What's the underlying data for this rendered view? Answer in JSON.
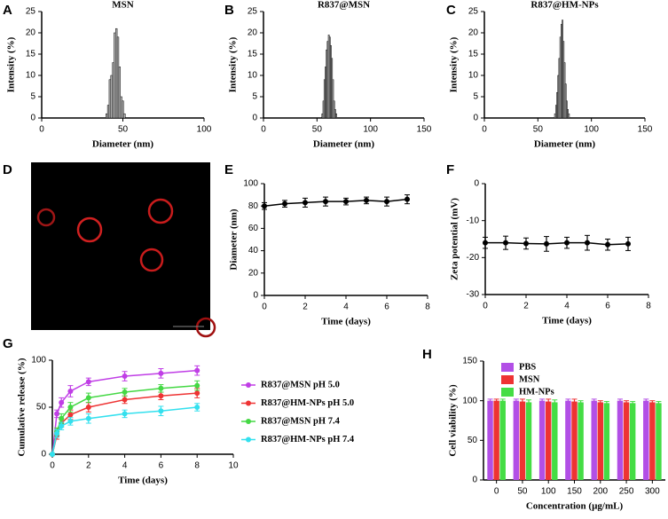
{
  "chart_data": [
    {
      "panel": "A",
      "type": "bar",
      "title": "MSN",
      "x_label": "Diameter (nm)",
      "y_label": "Intensity (%)",
      "color": "#bbbbbb",
      "x": [
        40,
        41,
        42,
        43,
        44,
        45,
        46,
        47,
        48,
        49,
        50,
        51
      ],
      "values": [
        1,
        3,
        9,
        10,
        13,
        20,
        21,
        19,
        12,
        5,
        4,
        1
      ],
      "xlim": [
        0,
        100
      ],
      "xticks": [
        0,
        50,
        100
      ],
      "ylim": [
        0,
        25
      ],
      "yticks": [
        0,
        5,
        10,
        15,
        20,
        25
      ]
    },
    {
      "panel": "B",
      "type": "bar",
      "title": "R837@MSN",
      "x_label": "Diameter (nm)",
      "y_label": "Intensity (%)",
      "color": "#bbbbbb",
      "x": [
        55,
        56,
        57,
        58,
        59,
        60,
        61,
        62,
        63,
        64,
        65,
        66,
        67,
        68
      ],
      "values": [
        1,
        4,
        9,
        12,
        16,
        18,
        19.5,
        19,
        17,
        14,
        9,
        4,
        2,
        1
      ],
      "xlim": [
        0,
        150
      ],
      "xticks": [
        0,
        50,
        100,
        150
      ],
      "ylim": [
        0,
        25
      ],
      "yticks": [
        0,
        5,
        10,
        15,
        20,
        25
      ]
    },
    {
      "panel": "C",
      "type": "bar",
      "title": "R837@HM-NPs",
      "x_label": "Diameter (nm)",
      "y_label": "Intensity (%)",
      "color": "#bbbbbb",
      "x": [
        66,
        67,
        68,
        69,
        70,
        71,
        72,
        73,
        74,
        75,
        76,
        77,
        78,
        79
      ],
      "values": [
        1,
        3,
        6,
        10,
        14,
        19,
        22,
        23,
        18,
        13,
        8,
        4,
        2,
        1
      ],
      "xlim": [
        0,
        150
      ],
      "xticks": [
        0,
        50,
        100,
        150
      ],
      "ylim": [
        0,
        25
      ],
      "yticks": [
        0,
        5,
        10,
        15,
        20,
        25
      ]
    },
    {
      "panel": "E",
      "type": "line",
      "x_label": "Time (days)",
      "y_label": "Diameter (nm)",
      "color": "#000000",
      "x": [
        0,
        1,
        2,
        3,
        4,
        5,
        6,
        7
      ],
      "values": [
        80,
        82,
        83,
        84,
        84,
        85,
        84,
        86
      ],
      "errors": [
        3,
        3,
        4,
        4,
        3,
        3,
        4,
        4
      ],
      "xlim": [
        0,
        8
      ],
      "xticks": [
        0,
        2,
        4,
        6,
        8
      ],
      "ylim": [
        0,
        100
      ],
      "yticks": [
        0,
        20,
        40,
        60,
        80,
        100
      ]
    },
    {
      "panel": "F",
      "type": "line",
      "x_label": "Time (days)",
      "y_label": "Zeta potential (mV)",
      "color": "#000000",
      "x": [
        0,
        1,
        2,
        3,
        4,
        5,
        6,
        7
      ],
      "values": [
        -16,
        -16,
        -16.2,
        -16.3,
        -16,
        -16,
        -16.5,
        -16.3
      ],
      "errors": [
        1.5,
        1.8,
        1.5,
        2,
        1.5,
        2,
        1.5,
        1.8
      ],
      "xlim": [
        0,
        8
      ],
      "xticks": [
        0,
        2,
        4,
        6,
        8
      ],
      "ylim": [
        -30,
        0
      ],
      "yticks": [
        0,
        -10,
        -20,
        -30
      ]
    },
    {
      "panel": "G",
      "type": "line",
      "x_label": "Time (days)",
      "y_label": "Cumulative release (%)",
      "legend": "right",
      "x": [
        0,
        0.25,
        0.5,
        1,
        2,
        4,
        6,
        8
      ],
      "series": [
        {
          "name": "R837@MSN pH 5.0",
          "color": "#c03ee6",
          "values": [
            0,
            43,
            55,
            67,
            77,
            83,
            86,
            89
          ],
          "errors": [
            0,
            4,
            5,
            6,
            4,
            5,
            5,
            5
          ]
        },
        {
          "name": "R837@HM-NPs pH 5.0",
          "color": "#ee3333",
          "values": [
            0,
            20,
            33,
            42,
            50,
            58,
            62,
            65
          ],
          "errors": [
            0,
            4,
            4,
            5,
            5,
            4,
            4,
            5
          ]
        },
        {
          "name": "R837@MSN pH 7.4",
          "color": "#44d844",
          "values": [
            0,
            24,
            38,
            50,
            60,
            66,
            70,
            73
          ],
          "errors": [
            0,
            4,
            5,
            5,
            5,
            4,
            4,
            5
          ]
        },
        {
          "name": "R837@HM-NPs pH 7.4",
          "color": "#33e0ee",
          "values": [
            0,
            22,
            30,
            35,
            38,
            43,
            46,
            50
          ],
          "errors": [
            0,
            4,
            4,
            4,
            5,
            4,
            5,
            4
          ]
        }
      ],
      "xlim": [
        0,
        10
      ],
      "xticks": [
        0,
        2,
        4,
        6,
        8,
        10
      ],
      "ylim": [
        0,
        100
      ],
      "yticks": [
        0,
        50,
        100
      ]
    },
    {
      "panel": "H",
      "type": "bar",
      "x_label": "Concentration (µg/mL)",
      "y_label": "Cell viability (%)",
      "legend": "top-left",
      "categories": [
        "0",
        "50",
        "100",
        "150",
        "200",
        "250",
        "300"
      ],
      "series": [
        {
          "name": "PBS",
          "color": "#b24fe6",
          "values": [
            100,
            100,
            100,
            100,
            100,
            100,
            100
          ],
          "errors": [
            2,
            2,
            2,
            2,
            2,
            2,
            2
          ]
        },
        {
          "name": "MSN",
          "color": "#ee3333",
          "values": [
            100,
            99,
            99,
            99,
            98,
            98,
            98
          ],
          "errors": [
            2,
            3,
            3,
            3,
            2,
            2,
            2
          ]
        },
        {
          "name": "HM-NPs",
          "color": "#44dd44",
          "values": [
            100,
            98,
            98,
            98,
            97,
            97,
            97
          ],
          "errors": [
            2,
            3,
            3,
            2,
            2,
            2,
            2
          ]
        }
      ],
      "ylim": [
        0,
        150
      ],
      "yticks": [
        0,
        50,
        100,
        150
      ]
    }
  ],
  "image_panel": {
    "panel": "D"
  }
}
